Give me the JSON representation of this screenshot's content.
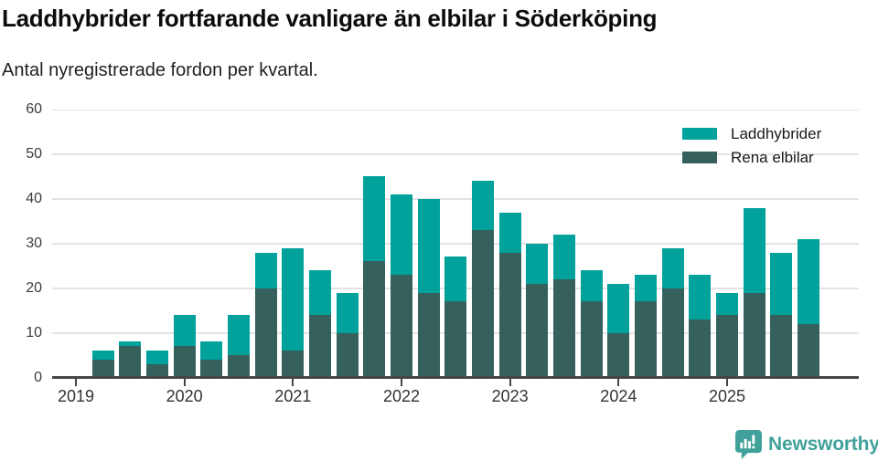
{
  "header": {
    "title": "Laddhybrider fortfarande vanligare än elbilar i Söderköping",
    "subtitle": "Antal nyregistrerade fordon per kvartal."
  },
  "footer": {
    "brand": "Newsworthy",
    "brand_color": "#40a19a",
    "brand_icon": "bar-chart-speech-bubble-icon"
  },
  "chart_data": {
    "type": "bar",
    "stacked": true,
    "title": "Laddhybrider fortfarande vanligare än elbilar i Söderköping",
    "subtitle": "Antal nyregistrerade fordon per kvartal.",
    "xlabel": "",
    "ylabel": "",
    "ylim": [
      0,
      60
    ],
    "yticks": [
      0,
      10,
      20,
      30,
      40,
      50,
      60
    ],
    "grid": true,
    "legend_position": "top-right",
    "x": [
      "2019 Q1",
      "2019 Q2",
      "2019 Q3",
      "2019 Q4",
      "2020 Q1",
      "2020 Q2",
      "2020 Q3",
      "2020 Q4",
      "2021 Q1",
      "2021 Q2",
      "2021 Q3",
      "2021 Q4",
      "2022 Q1",
      "2022 Q2",
      "2022 Q3",
      "2022 Q4",
      "2023 Q1",
      "2023 Q2",
      "2023 Q3",
      "2023 Q4",
      "2024 Q1",
      "2024 Q2",
      "2024 Q3",
      "2024 Q4",
      "2025 Q1",
      "2025 Q2",
      "2025 Q3",
      "2025 Q4"
    ],
    "xticks": [
      "2019",
      "2020",
      "2021",
      "2022",
      "2023",
      "2024",
      "2025"
    ],
    "series": [
      {
        "name": "Laddhybrider",
        "color": "#00a29b",
        "values": [
          0,
          2,
          1,
          3,
          7,
          4,
          9,
          8,
          23,
          10,
          9,
          19,
          18,
          21,
          10,
          11,
          9,
          9,
          10,
          7,
          11,
          6,
          9,
          10,
          5,
          19,
          14,
          19
        ]
      },
      {
        "name": "Rena elbilar",
        "color": "#35605c",
        "values": [
          0,
          4,
          7,
          3,
          7,
          4,
          5,
          20,
          6,
          14,
          10,
          26,
          23,
          19,
          17,
          33,
          28,
          21,
          22,
          17,
          10,
          17,
          20,
          13,
          14,
          19,
          14,
          12
        ]
      }
    ],
    "totals": [
      0,
      6,
      8,
      6,
      14,
      8,
      14,
      28,
      29,
      24,
      19,
      45,
      41,
      40,
      27,
      44,
      37,
      30,
      32,
      24,
      21,
      23,
      29,
      23,
      19,
      38,
      28,
      31
    ]
  },
  "colors": {
    "grid": "#e3e3e3",
    "axis": "#454545",
    "tick_label": "#333333"
  }
}
